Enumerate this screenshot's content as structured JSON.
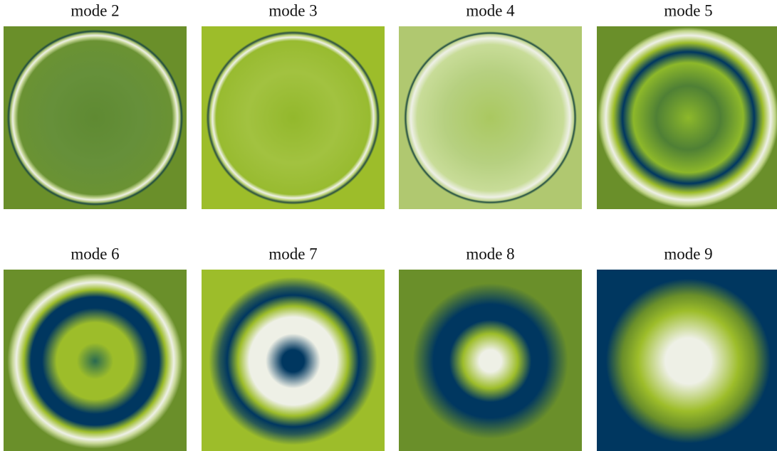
{
  "panels": [
    {
      "title": "mode 2"
    },
    {
      "title": "mode 3"
    },
    {
      "title": "mode 4"
    },
    {
      "title": "mode 5"
    },
    {
      "title": "mode 6"
    },
    {
      "title": "mode 7"
    },
    {
      "title": "mode 8"
    },
    {
      "title": "mode 9"
    }
  ]
}
